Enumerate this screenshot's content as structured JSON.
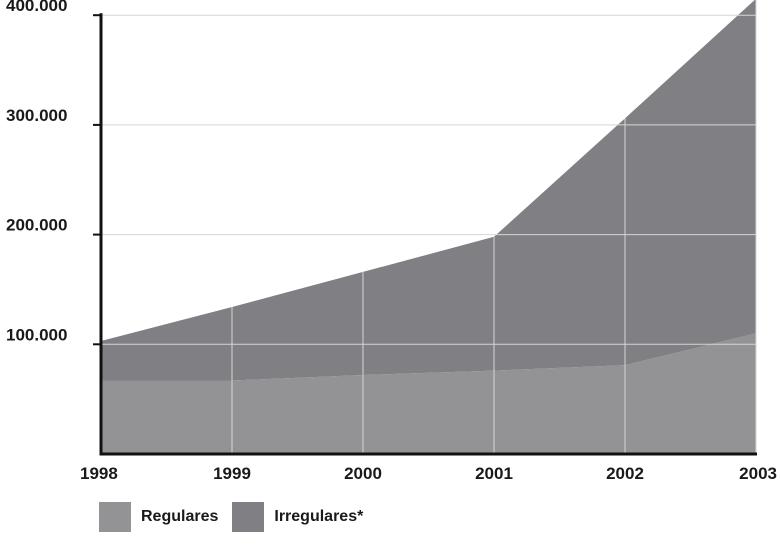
{
  "chart_data": {
    "type": "area",
    "stacked": true,
    "x": [
      "1998",
      "1999",
      "2000",
      "2001",
      "2002",
      "2003"
    ],
    "y_ticks": [
      "100.000",
      "200.000",
      "300.000",
      "400.000"
    ],
    "y_tick_values": [
      100000,
      200000,
      300000,
      400000
    ],
    "ylim": [
      0,
      400000
    ],
    "grid": true,
    "legend_position": "bottom-left",
    "series": [
      {
        "name": "Regulares",
        "color": "#939396",
        "values": [
          67000,
          67000,
          72000,
          76000,
          81000,
          110000
        ]
      },
      {
        "name": "Irregulares*",
        "color": "#808084",
        "values": [
          36000,
          67000,
          94000,
          122000,
          225000,
          305000
        ]
      }
    ],
    "totals": [
      103000,
      134000,
      166000,
      198000,
      306000,
      415000
    ]
  },
  "colors": {
    "axis": "#111111",
    "grid": "#d6d6d8",
    "text": "#1a1a1a"
  }
}
